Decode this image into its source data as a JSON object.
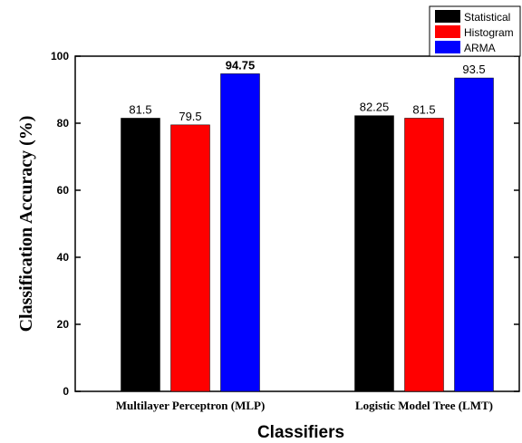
{
  "chart_data": {
    "type": "bar",
    "title": "",
    "xlabel": "Classifiers",
    "ylabel": "Classification Accuracy (%)",
    "categories": [
      "Multilayer Perceptron (MLP)",
      "Logistic Model Tree (LMT)"
    ],
    "series": [
      {
        "name": "Statistical",
        "values": [
          81.5,
          82.25
        ],
        "color": "#000000",
        "labels": [
          "81.5",
          "82.25"
        ]
      },
      {
        "name": "Histogram",
        "values": [
          79.5,
          81.5
        ],
        "color": "#ff0000",
        "labels": [
          "79.5",
          "81.5"
        ]
      },
      {
        "name": "ARMA",
        "values": [
          94.75,
          93.5
        ],
        "color": "#0000ff",
        "labels": [
          "94.75",
          "93.5"
        ]
      }
    ],
    "ylim": [
      0,
      100
    ],
    "yticks": [
      "0",
      "20",
      "40",
      "60",
      "80",
      "100"
    ],
    "grid": false,
    "legend_position": "top-right"
  }
}
